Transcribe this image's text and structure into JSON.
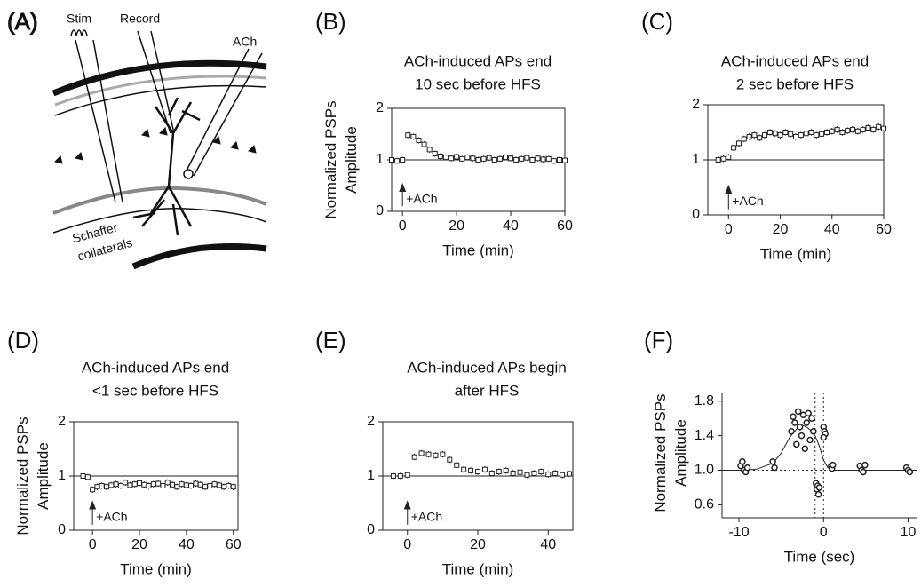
{
  "diagram": {
    "label": "(A)",
    "labels": {
      "stim": "Stim",
      "record": "Record",
      "ach": "ACh",
      "schaffer": [
        "Schaffer",
        "collaterals"
      ]
    }
  },
  "chart_data": [
    {
      "type": "line",
      "panel": "(B)",
      "title": [
        "ACh-induced APs end",
        "10 sec before HFS"
      ],
      "y_label": [
        "Normalized PSPs",
        "Amplitude"
      ],
      "x_label": "Time (min)",
      "annotation": "+ACh",
      "x": [
        -4,
        -2,
        0,
        2,
        4,
        6,
        8,
        10,
        12,
        14,
        16,
        18,
        20,
        22,
        24,
        26,
        28,
        30,
        32,
        34,
        36,
        38,
        40,
        42,
        44,
        46,
        48,
        50,
        52,
        54,
        56,
        58,
        60
      ],
      "values": [
        1.0,
        0.98,
        1.0,
        1.48,
        1.45,
        1.38,
        1.3,
        1.2,
        1.12,
        1.07,
        1.05,
        1.03,
        1.06,
        1.02,
        1.05,
        1.03,
        1.0,
        1.02,
        1.04,
        1.0,
        1.02,
        1.05,
        1.03,
        1.0,
        1.02,
        1.04,
        1.0,
        1.03,
        1.01,
        1.02,
        0.98,
        1.0,
        0.99
      ],
      "error": 0.06,
      "hline": 1,
      "xlim": [
        -4,
        60
      ],
      "ylim": [
        0,
        2
      ],
      "xticks": [
        0,
        20,
        40,
        60
      ],
      "yticks": [
        0,
        1,
        2
      ],
      "color": "#222"
    },
    {
      "type": "line",
      "panel": "(C)",
      "title": [
        "ACh-induced APs end",
        "2 sec before HFS"
      ],
      "x_label": "Time (min)",
      "annotation": "+ACh",
      "x": [
        -4,
        -2,
        0,
        2,
        4,
        6,
        8,
        10,
        12,
        14,
        16,
        18,
        20,
        22,
        24,
        26,
        28,
        30,
        32,
        34,
        36,
        38,
        40,
        42,
        44,
        46,
        48,
        50,
        52,
        54,
        56,
        58,
        60
      ],
      "values": [
        1.0,
        1.02,
        1.05,
        1.22,
        1.3,
        1.38,
        1.42,
        1.45,
        1.4,
        1.45,
        1.5,
        1.48,
        1.45,
        1.5,
        1.47,
        1.42,
        1.45,
        1.48,
        1.5,
        1.45,
        1.47,
        1.5,
        1.52,
        1.55,
        1.5,
        1.53,
        1.55,
        1.52,
        1.55,
        1.58,
        1.55,
        1.6,
        1.57
      ],
      "error": 0.06,
      "hline": 1,
      "xlim": [
        -8,
        60
      ],
      "ylim": [
        0,
        2
      ],
      "xticks": [
        0,
        20,
        40,
        60
      ],
      "yticks": [
        0,
        1,
        2
      ],
      "color": "#222"
    },
    {
      "type": "line",
      "panel": "(D)",
      "title": [
        "ACh-induced APs end",
        "<1 sec before HFS"
      ],
      "y_label": [
        "Normalized PSPs",
        "Amplitude"
      ],
      "x_label": "Time (min)",
      "annotation": "+ACh",
      "x": [
        -4,
        -2,
        0,
        2,
        4,
        6,
        8,
        10,
        12,
        14,
        16,
        18,
        20,
        22,
        24,
        26,
        28,
        30,
        32,
        34,
        36,
        38,
        40,
        42,
        44,
        46,
        48,
        50,
        52,
        54,
        56,
        58,
        60
      ],
      "values": [
        1.0,
        0.98,
        0.75,
        0.8,
        0.82,
        0.8,
        0.83,
        0.85,
        0.82,
        0.88,
        0.83,
        0.85,
        0.87,
        0.84,
        0.82,
        0.85,
        0.86,
        0.82,
        0.88,
        0.84,
        0.8,
        0.85,
        0.83,
        0.82,
        0.86,
        0.84,
        0.8,
        0.82,
        0.85,
        0.83,
        0.8,
        0.82,
        0.8
      ],
      "error": 0.06,
      "hline": 1,
      "xlim": [
        -8,
        62
      ],
      "ylim": [
        0,
        2
      ],
      "xticks": [
        0,
        20,
        40,
        60
      ],
      "yticks": [
        0,
        1,
        2
      ],
      "color": "#222"
    },
    {
      "type": "line",
      "panel": "(E)",
      "title": [
        "ACh-induced APs begin",
        "after HFS"
      ],
      "x_label": "Time (min)",
      "annotation": "+ACh",
      "x": [
        -4,
        -2,
        0,
        2,
        4,
        6,
        8,
        10,
        12,
        14,
        16,
        18,
        20,
        22,
        24,
        26,
        28,
        30,
        32,
        34,
        36,
        38,
        40,
        42,
        44,
        46
      ],
      "values": [
        1.0,
        1.0,
        1.02,
        1.35,
        1.42,
        1.4,
        1.38,
        1.4,
        1.3,
        1.2,
        1.12,
        1.1,
        1.08,
        1.12,
        1.05,
        1.08,
        1.1,
        1.05,
        1.07,
        1.02,
        1.05,
        1.08,
        1.03,
        1.05,
        1.02,
        1.04
      ],
      "error": 0.06,
      "hline": 1,
      "xlim": [
        -7,
        47
      ],
      "ylim": [
        0,
        2
      ],
      "xticks": [
        0,
        20,
        40
      ],
      "yticks": [
        0,
        1,
        2
      ],
      "color": "#222"
    },
    {
      "type": "scatter",
      "panel": "(F)",
      "y_label": [
        "Normalized PSPs",
        "Amplitude"
      ],
      "x_label": "Time (sec)",
      "x": [
        -9.8,
        -9.6,
        -9.4,
        -9.2,
        -9.0,
        -6.0,
        -5.8,
        -3.8,
        -3.6,
        -3.4,
        -3.2,
        -3.0,
        -2.8,
        -2.6,
        -2.4,
        -2.2,
        -2.0,
        -1.8,
        -1.6,
        -1.4,
        -1.2,
        -0.9,
        -0.8,
        -0.7,
        -0.6,
        -0.5,
        0,
        0.1,
        0.2,
        0,
        0.9,
        1.0,
        1.1,
        4.3,
        4.5,
        4.7,
        4.9,
        9.8,
        10.0,
        10.2
      ],
      "values": [
        1.05,
        1.1,
        1.0,
        0.98,
        1.03,
        1.1,
        1.03,
        1.45,
        1.62,
        1.55,
        1.3,
        1.68,
        1.5,
        1.4,
        1.64,
        1.25,
        1.55,
        1.66,
        1.35,
        1.6,
        1.45,
        0.85,
        0.78,
        0.82,
        0.72,
        0.8,
        1.5,
        1.45,
        1.42,
        1.38,
        1.05,
        1.02,
        1.06,
        1.05,
        1.0,
        0.98,
        1.06,
        1.03,
        1.0,
        0.98
      ],
      "fit": {
        "x": [
          -12,
          -10,
          -8,
          -6,
          -5,
          -4,
          -3,
          -2.5,
          -2,
          -1.5,
          -1,
          -0.5,
          0,
          0.5,
          1,
          2,
          11
        ],
        "y": [
          1.0,
          1.0,
          1.01,
          1.08,
          1.2,
          1.38,
          1.5,
          1.52,
          1.5,
          1.46,
          1.4,
          1.28,
          1.12,
          1.03,
          1.0,
          1.0,
          1.0
        ]
      },
      "vlines": [
        -1,
        0
      ],
      "hline": 1,
      "xlim": [
        -12,
        11
      ],
      "ylim": [
        0.45,
        1.9
      ],
      "xticks": [
        -10,
        0,
        10
      ],
      "yticks": [
        0.6,
        {
          "value": 1,
          "label": "1.0"
        },
        1.4,
        1.8
      ],
      "color": "#222"
    }
  ]
}
